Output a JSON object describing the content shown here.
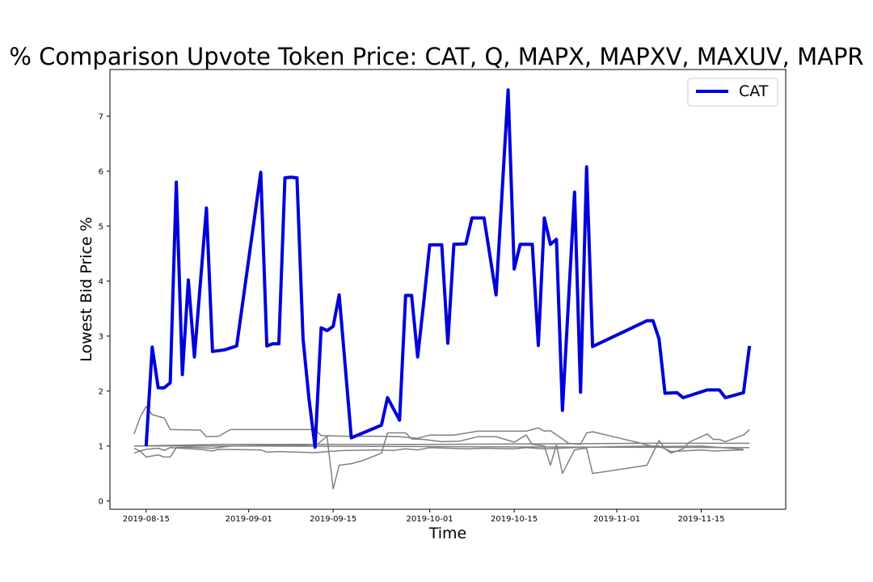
{
  "chart_data": {
    "type": "line",
    "title": "% Comparison Upvote Token Price: CAT, Q, MAPX, MAPXV, MAXUV, MAPR",
    "xlabel": "Time",
    "ylabel": "Lowest Bid Price %",
    "x_tick_labels": [
      "2019-08-15",
      "2019-09-01",
      "2019-09-15",
      "2019-10-01",
      "2019-10-15",
      "2019-11-01",
      "2019-11-15"
    ],
    "y_ticks": [
      0,
      1,
      2,
      3,
      4,
      5,
      6,
      7
    ],
    "xlim": [
      "2019-08-09",
      "2019-11-29"
    ],
    "ylim": [
      -0.15,
      7.85
    ],
    "grid": false,
    "legend": {
      "position": "top-right",
      "entries": [
        "CAT"
      ]
    },
    "colors": {
      "highlight": "#0000d9",
      "others": "#808080"
    },
    "series": [
      {
        "name": "CAT",
        "highlight": true,
        "points": [
          [
            "2019-08-15",
            1.0
          ],
          [
            "2019-08-16",
            2.8
          ],
          [
            "2019-08-17",
            2.06
          ],
          [
            "2019-08-18",
            2.06
          ],
          [
            "2019-08-19",
            2.15
          ],
          [
            "2019-08-20",
            5.8
          ],
          [
            "2019-08-21",
            2.3
          ],
          [
            "2019-08-22",
            4.02
          ],
          [
            "2019-08-23",
            2.62
          ],
          [
            "2019-08-25",
            5.33
          ],
          [
            "2019-08-26",
            2.72
          ],
          [
            "2019-08-28",
            2.75
          ],
          [
            "2019-08-30",
            2.82
          ],
          [
            "2019-09-03",
            5.98
          ],
          [
            "2019-09-04",
            2.82
          ],
          [
            "2019-09-05",
            2.86
          ],
          [
            "2019-09-06",
            2.86
          ],
          [
            "2019-09-07",
            5.88
          ],
          [
            "2019-09-08",
            5.89
          ],
          [
            "2019-09-09",
            5.88
          ],
          [
            "2019-09-10",
            2.95
          ],
          [
            "2019-09-11",
            1.85
          ],
          [
            "2019-09-12",
            0.98
          ],
          [
            "2019-09-13",
            3.15
          ],
          [
            "2019-09-14",
            3.1
          ],
          [
            "2019-09-15",
            3.18
          ],
          [
            "2019-09-16",
            3.75
          ],
          [
            "2019-09-18",
            1.15
          ],
          [
            "2019-09-23",
            1.38
          ],
          [
            "2019-09-24",
            1.88
          ],
          [
            "2019-09-26",
            1.47
          ],
          [
            "2019-09-27",
            3.74
          ],
          [
            "2019-09-28",
            3.74
          ],
          [
            "2019-09-29",
            2.62
          ],
          [
            "2019-09-30",
            3.6
          ],
          [
            "2019-10-01",
            4.66
          ],
          [
            "2019-10-03",
            4.66
          ],
          [
            "2019-10-04",
            2.87
          ],
          [
            "2019-10-05",
            4.67
          ],
          [
            "2019-10-07",
            4.68
          ],
          [
            "2019-10-08",
            5.15
          ],
          [
            "2019-10-10",
            5.15
          ],
          [
            "2019-10-12",
            3.75
          ],
          [
            "2019-10-14",
            7.48
          ],
          [
            "2019-10-15",
            4.22
          ],
          [
            "2019-10-16",
            4.67
          ],
          [
            "2019-10-18",
            4.67
          ],
          [
            "2019-10-19",
            2.83
          ],
          [
            "2019-10-20",
            5.15
          ],
          [
            "2019-10-21",
            4.67
          ],
          [
            "2019-10-22",
            4.76
          ],
          [
            "2019-10-23",
            1.65
          ],
          [
            "2019-10-25",
            5.62
          ],
          [
            "2019-10-26",
            1.98
          ],
          [
            "2019-10-27",
            6.08
          ],
          [
            "2019-10-28",
            2.81
          ],
          [
            "2019-11-06",
            3.28
          ],
          [
            "2019-11-07",
            3.28
          ],
          [
            "2019-11-08",
            2.95
          ],
          [
            "2019-11-09",
            1.96
          ],
          [
            "2019-11-11",
            1.97
          ],
          [
            "2019-11-12",
            1.88
          ],
          [
            "2019-11-16",
            2.02
          ],
          [
            "2019-11-18",
            2.02
          ],
          [
            "2019-11-19",
            1.88
          ],
          [
            "2019-11-22",
            1.97
          ],
          [
            "2019-11-23",
            2.82
          ]
        ]
      },
      {
        "points": [
          [
            "2019-08-13",
            1.22
          ],
          [
            "2019-08-14",
            1.52
          ],
          [
            "2019-08-15",
            1.72
          ],
          [
            "2019-08-16",
            1.57
          ],
          [
            "2019-08-18",
            1.51
          ],
          [
            "2019-08-19",
            1.3
          ],
          [
            "2019-08-24",
            1.29
          ],
          [
            "2019-08-25",
            1.17
          ],
          [
            "2019-08-27",
            1.18
          ],
          [
            "2019-08-29",
            1.3
          ],
          [
            "2019-09-03",
            1.3
          ],
          [
            "2019-09-12",
            1.3
          ],
          [
            "2019-09-13",
            1.19
          ],
          [
            "2019-09-17",
            1.18
          ],
          [
            "2019-09-22",
            1.18
          ],
          [
            "2019-09-26",
            1.17
          ],
          [
            "2019-09-29",
            1.14
          ],
          [
            "2019-10-01",
            1.2
          ],
          [
            "2019-10-05",
            1.2
          ],
          [
            "2019-10-09",
            1.27
          ],
          [
            "2019-10-17",
            1.27
          ],
          [
            "2019-10-19",
            1.33
          ],
          [
            "2019-10-20",
            1.27
          ],
          [
            "2019-10-21",
            1.28
          ],
          [
            "2019-10-24",
            1.05
          ],
          [
            "2019-10-26",
            1.03
          ],
          [
            "2019-10-27",
            1.24
          ],
          [
            "2019-10-28",
            1.26
          ],
          [
            "2019-11-05",
            1.05
          ],
          [
            "2019-11-07",
            0.99
          ],
          [
            "2019-11-15",
            1.0
          ],
          [
            "2019-11-22",
            0.94
          ]
        ]
      },
      {
        "points": [
          [
            "2019-08-13",
            0.96
          ],
          [
            "2019-08-14",
            0.91
          ],
          [
            "2019-08-15",
            0.94
          ],
          [
            "2019-08-17",
            0.96
          ],
          [
            "2019-08-18",
            0.92
          ],
          [
            "2019-08-19",
            0.97
          ],
          [
            "2019-08-24",
            0.94
          ],
          [
            "2019-08-26",
            0.91
          ],
          [
            "2019-08-27",
            0.94
          ],
          [
            "2019-09-03",
            0.93
          ],
          [
            "2019-09-04",
            0.89
          ],
          [
            "2019-09-06",
            0.9
          ],
          [
            "2019-09-12",
            0.88
          ],
          [
            "2019-09-14",
            0.9
          ],
          [
            "2019-09-17",
            0.92
          ],
          [
            "2019-09-22",
            0.93
          ],
          [
            "2019-09-25",
            0.92
          ],
          [
            "2019-09-27",
            0.95
          ],
          [
            "2019-09-29",
            0.93
          ],
          [
            "2019-10-01",
            0.97
          ],
          [
            "2019-10-07",
            0.95
          ],
          [
            "2019-10-10",
            0.96
          ],
          [
            "2019-10-15",
            0.95
          ],
          [
            "2019-10-17",
            0.97
          ],
          [
            "2019-10-20",
            0.95
          ],
          [
            "2019-10-25",
            0.97
          ],
          [
            "2019-11-01",
            0.99
          ],
          [
            "2019-11-08",
            1.0
          ],
          [
            "2019-11-10",
            0.9
          ],
          [
            "2019-11-15",
            0.93
          ],
          [
            "2019-11-17",
            0.91
          ],
          [
            "2019-11-22",
            0.93
          ]
        ]
      },
      {
        "points": [
          [
            "2019-08-13",
            0.87
          ],
          [
            "2019-08-14",
            0.91
          ],
          [
            "2019-08-15",
            0.8
          ],
          [
            "2019-08-17",
            0.84
          ],
          [
            "2019-08-18",
            0.8
          ],
          [
            "2019-08-19",
            0.8
          ],
          [
            "2019-08-20",
            0.97
          ],
          [
            "2019-08-22",
            0.98
          ],
          [
            "2019-08-26",
            0.96
          ],
          [
            "2019-08-29",
            1.0
          ],
          [
            "2019-09-05",
            1.01
          ],
          [
            "2019-09-10",
            1.01
          ],
          [
            "2019-09-12",
            1.0
          ],
          [
            "2019-09-14",
            1.18
          ],
          [
            "2019-09-14",
            1.16
          ],
          [
            "2019-09-15",
            0.22
          ],
          [
            "2019-09-16",
            0.65
          ],
          [
            "2019-09-18",
            0.68
          ],
          [
            "2019-09-20",
            0.74
          ],
          [
            "2019-09-23",
            0.87
          ],
          [
            "2019-09-24",
            1.24
          ],
          [
            "2019-09-27",
            1.24
          ],
          [
            "2019-09-28",
            1.13
          ],
          [
            "2019-09-30",
            1.12
          ],
          [
            "2019-10-03",
            1.08
          ],
          [
            "2019-10-06",
            1.09
          ],
          [
            "2019-10-09",
            1.17
          ],
          [
            "2019-10-12",
            1.17
          ],
          [
            "2019-10-15",
            1.07
          ],
          [
            "2019-10-17",
            1.2
          ],
          [
            "2019-10-18",
            1.03
          ],
          [
            "2019-10-20",
            1.0
          ],
          [
            "2019-10-21",
            0.65
          ],
          [
            "2019-10-22",
            1.02
          ],
          [
            "2019-10-23",
            0.5
          ],
          [
            "2019-10-25",
            0.93
          ],
          [
            "2019-10-26",
            0.95
          ],
          [
            "2019-10-27",
            0.96
          ],
          [
            "2019-10-28",
            0.5
          ],
          [
            "2019-11-06",
            0.65
          ],
          [
            "2019-11-08",
            1.1
          ],
          [
            "2019-11-09",
            0.95
          ],
          [
            "2019-11-10",
            0.87
          ],
          [
            "2019-11-12",
            0.95
          ],
          [
            "2019-11-13",
            1.07
          ],
          [
            "2019-11-16",
            1.22
          ],
          [
            "2019-11-17",
            1.12
          ],
          [
            "2019-11-18",
            1.12
          ],
          [
            "2019-11-19",
            1.08
          ],
          [
            "2019-11-22",
            1.2
          ],
          [
            "2019-11-23",
            1.3
          ]
        ]
      },
      {
        "points": [
          [
            "2019-08-13",
            1.0
          ],
          [
            "2019-08-27",
            1.03
          ],
          [
            "2019-09-12",
            1.03
          ],
          [
            "2019-10-01",
            1.03
          ],
          [
            "2019-10-20",
            1.04
          ],
          [
            "2019-11-05",
            1.05
          ],
          [
            "2019-11-23",
            1.05
          ]
        ]
      },
      {
        "points": [
          [
            "2019-08-13",
            1.0
          ],
          [
            "2019-09-01",
            1.0
          ],
          [
            "2019-10-01",
            0.99
          ],
          [
            "2019-11-01",
            0.98
          ],
          [
            "2019-11-23",
            0.97
          ]
        ]
      }
    ]
  }
}
